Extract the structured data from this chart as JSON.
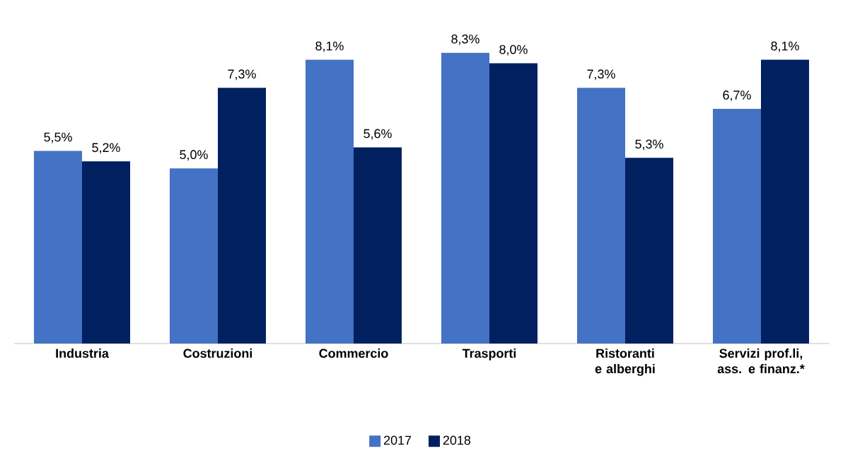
{
  "chart_data": {
    "type": "bar",
    "categories": [
      "Industria",
      "Costruzioni",
      "Commercio",
      "Trasporti",
      "Ristoranti e alberghi",
      "Servizi prof.li, ass. e finanz.*"
    ],
    "series": [
      {
        "name": "2017",
        "color": "#4472c4",
        "values": [
          5.5,
          5.0,
          8.1,
          8.3,
          7.3,
          6.7
        ],
        "value_labels": [
          "5,5%",
          "5,0%",
          "8,1%",
          "8,3%",
          "7,3%",
          "6,7%"
        ]
      },
      {
        "name": "2018",
        "color": "#002060",
        "values": [
          5.2,
          7.3,
          5.6,
          8.0,
          5.3,
          8.1
        ],
        "value_labels": [
          "5,2%",
          "7,3%",
          "5,6%",
          "8,0%",
          "5,3%",
          "8,1%"
        ]
      }
    ],
    "legend": "bottom"
  }
}
